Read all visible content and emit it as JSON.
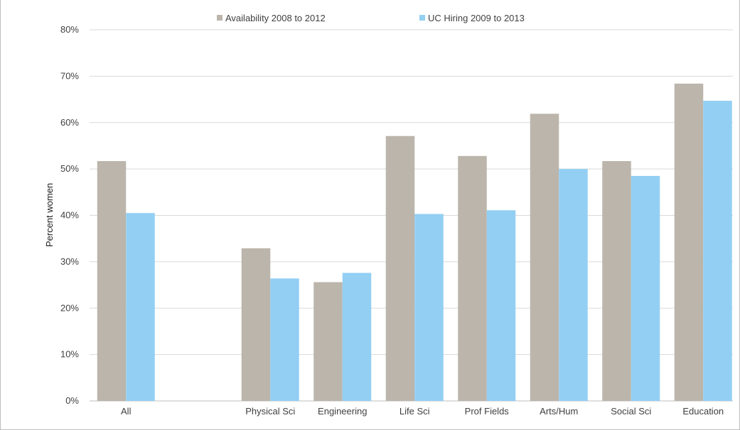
{
  "chart_data": {
    "type": "bar",
    "title": "",
    "xlabel": "",
    "ylabel": "Percent women",
    "ylim": [
      0,
      80
    ],
    "yticks": [
      "0%",
      "10%",
      "20%",
      "30%",
      "40%",
      "50%",
      "60%",
      "70%",
      "80%"
    ],
    "ytick_values": [
      0,
      10,
      20,
      30,
      40,
      50,
      60,
      70,
      80
    ],
    "grid": true,
    "legend_position": "top",
    "categories": [
      "All",
      "",
      "Physical Sci",
      "Engineering",
      "Life Sci",
      "Prof Fields",
      "Arts/Hum",
      "Social Sci",
      "Education"
    ],
    "series": [
      {
        "name": "Availability 2008 to 2012",
        "color": "#bbb5ab",
        "values": [
          51.7,
          null,
          32.9,
          25.6,
          57.1,
          52.8,
          61.9,
          51.7,
          68.4
        ]
      },
      {
        "name": "UC Hiring 2009 to 2013",
        "color": "#93cff3",
        "values": [
          40.5,
          null,
          26.4,
          27.6,
          40.3,
          41.1,
          50.0,
          48.5,
          64.7
        ]
      }
    ]
  }
}
